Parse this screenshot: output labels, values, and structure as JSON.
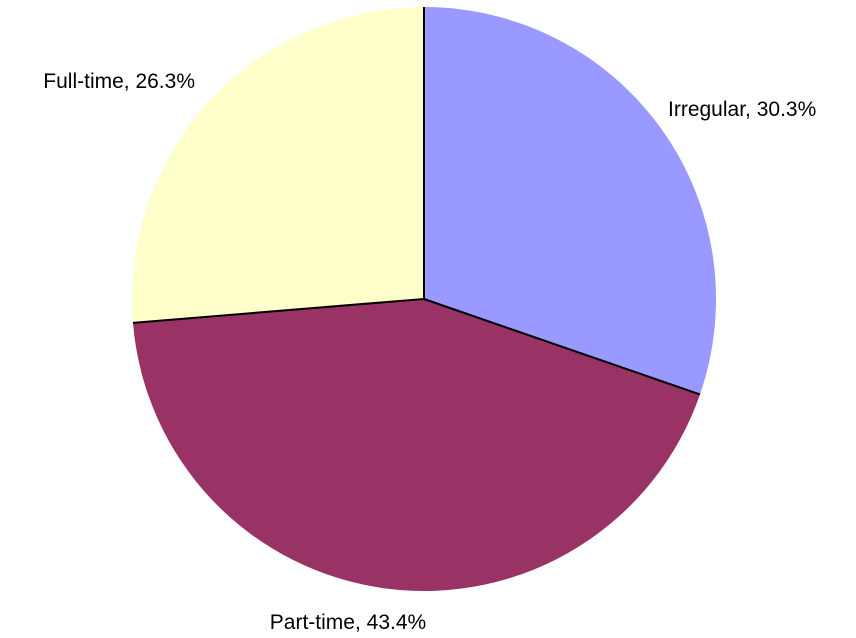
{
  "chart_data": {
    "type": "pie",
    "title": "",
    "slices": [
      {
        "label": "Irregular, 30.3%",
        "category": "Irregular",
        "value": 30.3,
        "color": "#9999ff"
      },
      {
        "label": "Part-time, 43.4%",
        "category": "Part-time",
        "value": 43.4,
        "color": "#993366"
      },
      {
        "label": "Full-time, 26.3%",
        "category": "Full-time",
        "value": 26.3,
        "color": "#ffffcc"
      }
    ],
    "start_angle": "12 o'clock, clockwise",
    "legend": "none (labels beside slices)"
  }
}
